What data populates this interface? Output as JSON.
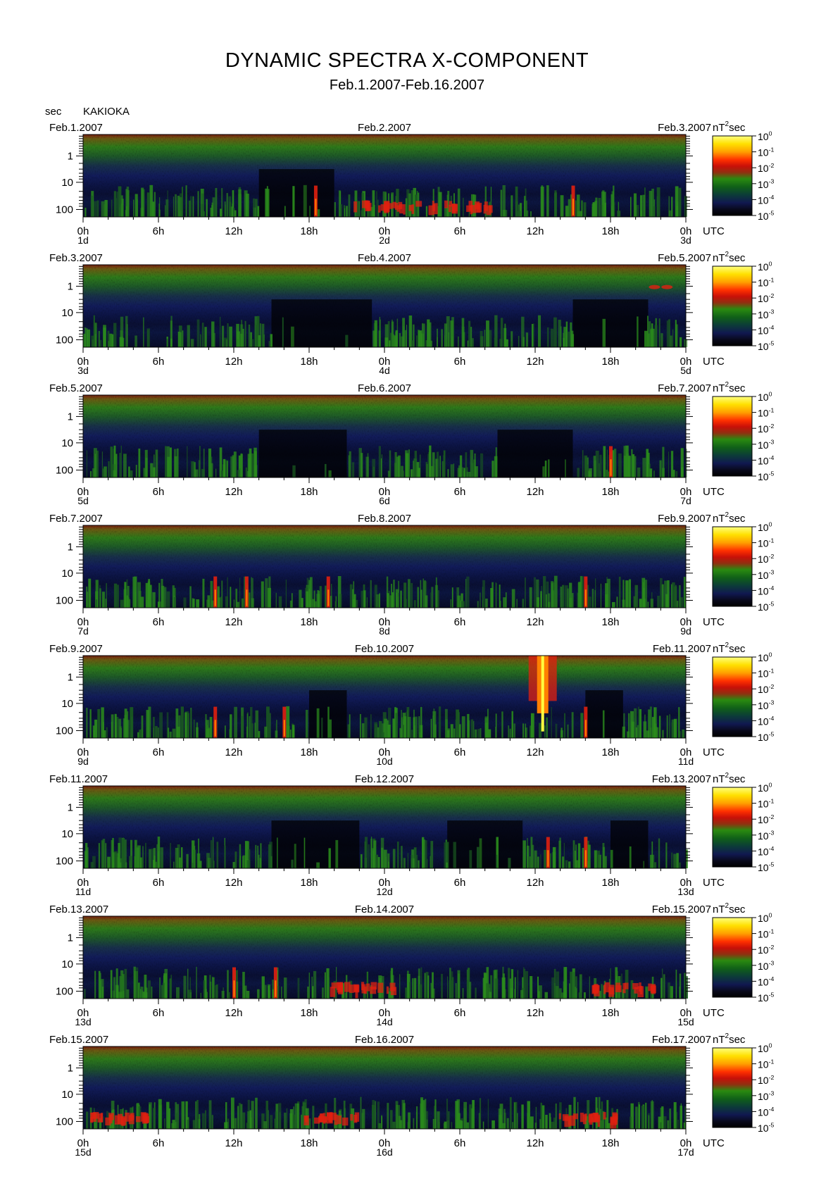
{
  "title": "DYNAMIC SPECTRA X-COMPONENT",
  "subtitle": "Feb.1.2007-Feb.16.2007",
  "y_unit_label": "sec",
  "station": "KAKIOKA",
  "colorbar_unit": "nT",
  "colorbar_unit_exp": "2",
  "colorbar_unit_tail": "sec",
  "colorbar_ticks": [
    {
      "base": "10",
      "exp": "0"
    },
    {
      "base": "10",
      "exp": "-1"
    },
    {
      "base": "10",
      "exp": "-2"
    },
    {
      "base": "10",
      "exp": "-3"
    },
    {
      "base": "10",
      "exp": "-4"
    },
    {
      "base": "10",
      "exp": "-5"
    }
  ],
  "colorbar_colors": [
    "#ffff80",
    "#ffd800",
    "#ff9000",
    "#ff2800",
    "#d01000",
    "#903000",
    "#2a8a10",
    "#106018",
    "#0c3c38",
    "#101850",
    "#080818",
    "#000000"
  ],
  "spectrum_colors": {
    "black": "#020203",
    "navy": "#0e1650",
    "blue": "#1a2a7a",
    "green": "#2a8a1c",
    "darkgreen": "#1a5a20",
    "brown": "#6a4a10",
    "red": "#e02010",
    "orange": "#ff8000",
    "yellow": "#ffff40"
  },
  "x_tick_labels": [
    "0h",
    "6h",
    "12h",
    "18h",
    "0h",
    "6h",
    "12h",
    "18h",
    "0h"
  ],
  "utc_label": "UTC",
  "y_tick_labels": [
    "1",
    "10",
    "100"
  ],
  "chart_data": [
    {
      "type": "heatmap",
      "left_date": "Feb.1.2007",
      "mid_date": "Feb.2.2007",
      "right_date": "Feb.3.2007",
      "day_labels": [
        "1d",
        "2d",
        "3d"
      ],
      "events": [
        {
          "hour": 18.5,
          "kind": "spike"
        },
        {
          "hour": 24,
          "kind": "band"
        },
        {
          "hour": 30,
          "kind": "band"
        },
        {
          "hour": 39,
          "kind": "spike"
        }
      ],
      "quiet": [
        [
          14,
          20
        ]
      ]
    },
    {
      "type": "heatmap",
      "left_date": "Feb.3.2007",
      "mid_date": "Feb.4.2007",
      "right_date": "Feb.5.2007",
      "day_labels": [
        "3d",
        "4d",
        "5d"
      ],
      "events": [
        {
          "hour": 45.5,
          "kind": "blob"
        },
        {
          "hour": 46.5,
          "kind": "blob"
        }
      ],
      "quiet": [
        [
          15,
          23
        ],
        [
          39,
          45
        ]
      ]
    },
    {
      "type": "heatmap",
      "left_date": "Feb.5.2007",
      "mid_date": "Feb.6.2007",
      "right_date": "Feb.7.2007",
      "day_labels": [
        "5d",
        "6d",
        "7d"
      ],
      "events": [
        {
          "hour": 42,
          "kind": "spike"
        }
      ],
      "quiet": [
        [
          14,
          21
        ],
        [
          33,
          39
        ]
      ]
    },
    {
      "type": "heatmap",
      "left_date": "Feb.7.2007",
      "mid_date": "Feb.8.2007",
      "right_date": "Feb.9.2007",
      "day_labels": [
        "7d",
        "8d",
        "9d"
      ],
      "events": [
        {
          "hour": 10.5,
          "kind": "spike"
        },
        {
          "hour": 13,
          "kind": "spike"
        },
        {
          "hour": 19.5,
          "kind": "spike"
        },
        {
          "hour": 40,
          "kind": "spike"
        }
      ],
      "quiet": []
    },
    {
      "type": "heatmap",
      "left_date": "Feb.9.2007",
      "mid_date": "Feb.10.2007",
      "right_date": "Feb.11.2007",
      "day_labels": [
        "9d",
        "10d",
        "11d"
      ],
      "events": [
        {
          "hour": 36.6,
          "kind": "storm"
        },
        {
          "hour": 10.5,
          "kind": "spike"
        },
        {
          "hour": 16,
          "kind": "spike"
        },
        {
          "hour": 40,
          "kind": "spike"
        }
      ],
      "quiet": [
        [
          18,
          21
        ],
        [
          40,
          43
        ]
      ]
    },
    {
      "type": "heatmap",
      "left_date": "Feb.11.2007",
      "mid_date": "Feb.12.2007",
      "right_date": "Feb.13.2007",
      "day_labels": [
        "11d",
        "12d",
        "13d"
      ],
      "events": [
        {
          "hour": 37,
          "kind": "spike"
        },
        {
          "hour": 40,
          "kind": "spike"
        }
      ],
      "quiet": [
        [
          15,
          22
        ],
        [
          29,
          35
        ],
        [
          42,
          45
        ]
      ]
    },
    {
      "type": "heatmap",
      "left_date": "Feb.13.2007",
      "mid_date": "Feb.14.2007",
      "right_date": "Feb.15.2007",
      "day_labels": [
        "13d",
        "14d",
        "15d"
      ],
      "events": [
        {
          "hour": 12,
          "kind": "spike"
        },
        {
          "hour": 15.3,
          "kind": "spike"
        },
        {
          "hour": 22,
          "kind": "band"
        },
        {
          "hour": 43,
          "kind": "band"
        }
      ],
      "quiet": []
    },
    {
      "type": "heatmap",
      "left_date": "Feb.15.2007",
      "mid_date": "Feb.16.2007",
      "right_date": "Feb.17.2007",
      "day_labels": [
        "15d",
        "16d",
        "17d"
      ],
      "events": [
        {
          "hour": 3,
          "kind": "band"
        },
        {
          "hour": 20,
          "kind": "band"
        },
        {
          "hour": 40,
          "kind": "band"
        }
      ],
      "quiet": []
    }
  ]
}
